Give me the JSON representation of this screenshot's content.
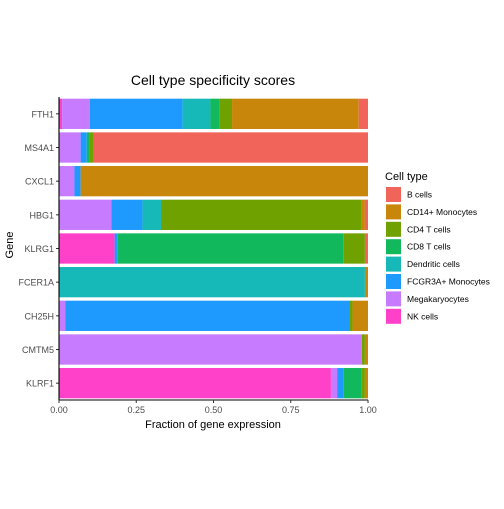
{
  "chart_data": {
    "type": "bar",
    "orientation": "horizontal",
    "stacked": true,
    "title": "Cell type specificity scores",
    "xlabel": "Fraction of gene expression",
    "ylabel": "Gene",
    "xlim": [
      0,
      1
    ],
    "xticks": [
      "0.00",
      "0.25",
      "0.50",
      "0.75",
      "1.00"
    ],
    "xtick_values": [
      0,
      0.25,
      0.5,
      0.75,
      1
    ],
    "grid": false,
    "legend_title": "Cell type",
    "legend_position": "right",
    "categories": [
      "FTH1",
      "MS4A1",
      "CXCL1",
      "HBG1",
      "KLRG1",
      "FCER1A",
      "CH25H",
      "CMTM5",
      "KLRF1"
    ],
    "series": [
      {
        "name": "NK cells",
        "color": "#FF40C8",
        "values": [
          0.01,
          0.0,
          0.0,
          0.0,
          0.18,
          0.0,
          0.0,
          0.0,
          0.88
        ]
      },
      {
        "name": "Megakaryocytes",
        "color": "#C77CFF",
        "values": [
          0.09,
          0.07,
          0.05,
          0.17,
          0.0,
          0.0,
          0.02,
          0.98,
          0.02
        ]
      },
      {
        "name": "FCGR3A+ Monocytes",
        "color": "#1E9AFF",
        "values": [
          0.3,
          0.02,
          0.02,
          0.1,
          0.01,
          0.0,
          0.92,
          0.0,
          0.02
        ]
      },
      {
        "name": "Dendritic cells",
        "color": "#16B8B8",
        "values": [
          0.09,
          0.0,
          0.0,
          0.06,
          0.0,
          0.99,
          0.0,
          0.0,
          0.0
        ]
      },
      {
        "name": "CD8 T cells",
        "color": "#12B85C",
        "values": [
          0.03,
          0.01,
          0.0,
          0.0,
          0.73,
          0.0,
          0.0,
          0.0,
          0.06
        ]
      },
      {
        "name": "CD4 T cells",
        "color": "#6FA100",
        "values": [
          0.04,
          0.01,
          0.0,
          0.65,
          0.07,
          0.0,
          0.01,
          0.01,
          0.01
        ]
      },
      {
        "name": "CD14+ Monocytes",
        "color": "#C8870B",
        "values": [
          0.41,
          0.0,
          0.93,
          0.01,
          0.0,
          0.01,
          0.05,
          0.01,
          0.01
        ]
      },
      {
        "name": "B cells",
        "color": "#F0645A",
        "values": [
          0.03,
          0.89,
          0.0,
          0.01,
          0.01,
          0.0,
          0.0,
          0.0,
          0.0
        ]
      }
    ],
    "legend_order": [
      "B cells",
      "CD14+ Monocytes",
      "CD4 T cells",
      "CD8 T cells",
      "Dendritic cells",
      "FCGR3A+ Monocytes",
      "Megakaryocytes",
      "NK cells"
    ]
  }
}
